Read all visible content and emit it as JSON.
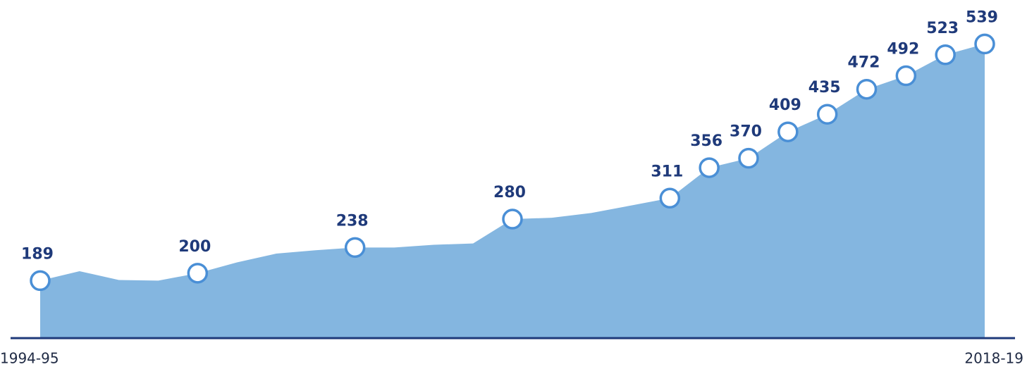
{
  "chart_data": {
    "type": "area",
    "categories": [
      "1994-95",
      null,
      null,
      null,
      null,
      null,
      null,
      null,
      null,
      null,
      null,
      null,
      null,
      null,
      null,
      null,
      null,
      null,
      null,
      null,
      null,
      null,
      null,
      null,
      "2018-19"
    ],
    "values": [
      189,
      203,
      190,
      189,
      200,
      216,
      229,
      234,
      238,
      238,
      242,
      244,
      280,
      282,
      289,
      300,
      311,
      356,
      370,
      409,
      435,
      472,
      492,
      523,
      539
    ],
    "value_labels": [
      "189",
      null,
      null,
      null,
      "200",
      null,
      null,
      null,
      "238",
      null,
      null,
      null,
      "280",
      null,
      null,
      null,
      "311",
      "356",
      "370",
      "409",
      "435",
      "472",
      "492",
      "523",
      "539"
    ],
    "color": "#84b6e0",
    "ylim": [
      104,
      604
    ]
  }
}
